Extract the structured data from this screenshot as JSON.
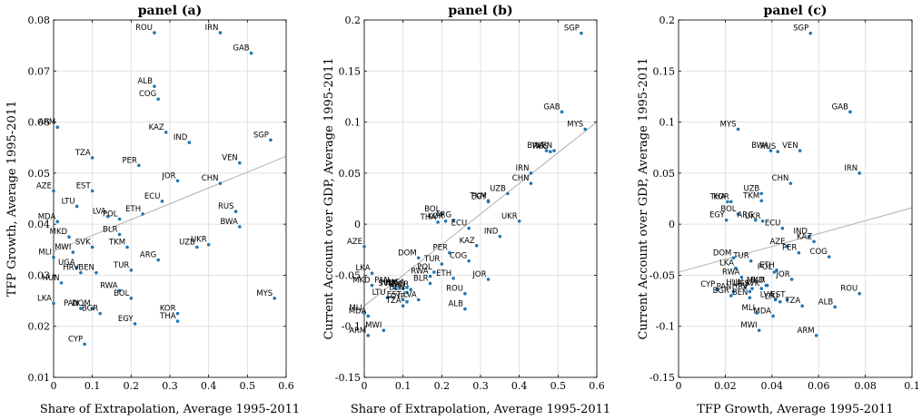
{
  "chart_data": [
    {
      "type": "scatter",
      "title": "panel (a)",
      "xlabel": "Share of Extrapolation, Average 1995-2011",
      "ylabel": "TFP Growth, Average 1995-2011",
      "xlim": [
        0,
        0.6
      ],
      "ylim": [
        0.01,
        0.08
      ],
      "xticks": [
        0,
        0.1,
        0.2,
        0.3,
        0.4,
        0.5,
        0.6
      ],
      "yticks": [
        0.01,
        0.02,
        0.03,
        0.04,
        0.05,
        0.06,
        0.07,
        0.08
      ],
      "xtick_labels": [
        "0",
        "0.1",
        "0.2",
        "0.3",
        "0.4",
        "0.5",
        "0.6"
      ],
      "ytick_labels": [
        "0.01",
        "0.02",
        "0.03",
        "0.04",
        "0.05",
        "0.06",
        "0.07",
        "0.08"
      ],
      "grid": true,
      "fit_line": [
        [
          0,
          0.0347
        ],
        [
          0.6,
          0.0533
        ]
      ],
      "points": [
        {
          "label": "ROU",
          "x": 0.26,
          "y": 0.0775
        },
        {
          "label": "IRN",
          "x": 0.43,
          "y": 0.0775
        },
        {
          "label": "GAB",
          "x": 0.51,
          "y": 0.0735
        },
        {
          "label": "ALB",
          "x": 0.26,
          "y": 0.067
        },
        {
          "label": "COG",
          "x": 0.27,
          "y": 0.0645
        },
        {
          "label": "ARM",
          "x": 0.01,
          "y": 0.059
        },
        {
          "label": "KAZ",
          "x": 0.29,
          "y": 0.058
        },
        {
          "label": "IND",
          "x": 0.35,
          "y": 0.056
        },
        {
          "label": "SGP",
          "x": 0.56,
          "y": 0.0565
        },
        {
          "label": "TZA",
          "x": 0.1,
          "y": 0.053
        },
        {
          "label": "PER",
          "x": 0.22,
          "y": 0.0515
        },
        {
          "label": "VEN",
          "x": 0.48,
          "y": 0.052
        },
        {
          "label": "JOR",
          "x": 0.32,
          "y": 0.0485
        },
        {
          "label": "CHN",
          "x": 0.43,
          "y": 0.048
        },
        {
          "label": "EST",
          "x": 0.1,
          "y": 0.0465
        },
        {
          "label": "AZE",
          "x": 0.0,
          "y": 0.0465
        },
        {
          "label": "ECU",
          "x": 0.28,
          "y": 0.0445
        },
        {
          "label": "LTU",
          "x": 0.06,
          "y": 0.0435
        },
        {
          "label": "RUS",
          "x": 0.47,
          "y": 0.0425
        },
        {
          "label": "ETH",
          "x": 0.23,
          "y": 0.042
        },
        {
          "label": "LVA",
          "x": 0.14,
          "y": 0.0415
        },
        {
          "label": "POL",
          "x": 0.17,
          "y": 0.041
        },
        {
          "label": "MDA",
          "x": 0.01,
          "y": 0.0405
        },
        {
          "label": "BWA",
          "x": 0.48,
          "y": 0.0395
        },
        {
          "label": "BLR",
          "x": 0.17,
          "y": 0.038
        },
        {
          "label": "MKD",
          "x": 0.04,
          "y": 0.0375
        },
        {
          "label": "SVK",
          "x": 0.1,
          "y": 0.0355
        },
        {
          "label": "TKM",
          "x": 0.19,
          "y": 0.0355
        },
        {
          "label": "UKR",
          "x": 0.4,
          "y": 0.036
        },
        {
          "label": "UZB",
          "x": 0.37,
          "y": 0.0355
        },
        {
          "label": "MWI",
          "x": 0.05,
          "y": 0.0345
        },
        {
          "label": "MLI",
          "x": 0.0,
          "y": 0.0335
        },
        {
          "label": "ARG",
          "x": 0.27,
          "y": 0.033
        },
        {
          "label": "UGA",
          "x": 0.06,
          "y": 0.0315
        },
        {
          "label": "HRV",
          "x": 0.07,
          "y": 0.0305
        },
        {
          "label": "BEN",
          "x": 0.11,
          "y": 0.0305
        },
        {
          "label": "TUR",
          "x": 0.2,
          "y": 0.031
        },
        {
          "label": "HUN",
          "x": 0.02,
          "y": 0.0285
        },
        {
          "label": "RWA",
          "x": 0.17,
          "y": 0.027
        },
        {
          "label": "BOL",
          "x": 0.2,
          "y": 0.0255
        },
        {
          "label": "MYS",
          "x": 0.57,
          "y": 0.0255
        },
        {
          "label": "LKA",
          "x": 0.0,
          "y": 0.0245
        },
        {
          "label": "PAN",
          "x": 0.07,
          "y": 0.0235
        },
        {
          "label": "DOM",
          "x": 0.1,
          "y": 0.0235
        },
        {
          "label": "BGR",
          "x": 0.12,
          "y": 0.0225
        },
        {
          "label": "KOR",
          "x": 0.32,
          "y": 0.0225
        },
        {
          "label": "THA",
          "x": 0.32,
          "y": 0.021
        },
        {
          "label": "EGY",
          "x": 0.21,
          "y": 0.0205
        },
        {
          "label": "CYP",
          "x": 0.08,
          "y": 0.0165
        }
      ]
    },
    {
      "type": "scatter",
      "title": "panel (b)",
      "xlabel": "Share of Extrapolation, Average 1995-2011",
      "ylabel": "Current Account over GDP, Average 1995-2011",
      "xlim": [
        0,
        0.6
      ],
      "ylim": [
        -0.15,
        0.2
      ],
      "xticks": [
        0,
        0.1,
        0.2,
        0.3,
        0.4,
        0.5,
        0.6
      ],
      "yticks": [
        -0.15,
        -0.1,
        -0.05,
        0,
        0.05,
        0.1,
        0.15,
        0.2
      ],
      "xtick_labels": [
        "0",
        "0.1",
        "0.2",
        "0.3",
        "0.4",
        "0.5",
        "0.6"
      ],
      "ytick_labels": [
        "-0.15",
        "-0.1",
        "-0.05",
        "0",
        "0.05",
        "0.1",
        "0.15",
        "0.2"
      ],
      "grid": true,
      "fit_line": [
        [
          0,
          -0.08
        ],
        [
          0.6,
          0.1
        ]
      ],
      "points": [
        {
          "label": "SGP",
          "x": 0.56,
          "y": 0.187
        },
        {
          "label": "GAB",
          "x": 0.51,
          "y": 0.11
        },
        {
          "label": "MYS",
          "x": 0.57,
          "y": 0.093
        },
        {
          "label": "BWA",
          "x": 0.47,
          "y": 0.072
        },
        {
          "label": "RUS",
          "x": 0.48,
          "y": 0.071
        },
        {
          "label": "VEN",
          "x": 0.49,
          "y": 0.072
        },
        {
          "label": "IRN",
          "x": 0.43,
          "y": 0.05
        },
        {
          "label": "CHN",
          "x": 0.43,
          "y": 0.04
        },
        {
          "label": "UZB",
          "x": 0.37,
          "y": 0.03
        },
        {
          "label": "TKM",
          "x": 0.32,
          "y": 0.023
        },
        {
          "label": "EGY",
          "x": 0.32,
          "y": 0.022
        },
        {
          "label": "BOL",
          "x": 0.2,
          "y": 0.01
        },
        {
          "label": "ARG",
          "x": 0.23,
          "y": 0.004
        },
        {
          "label": "THA",
          "x": 0.19,
          "y": 0.002
        },
        {
          "label": "KOR",
          "x": 0.21,
          "y": 0.003
        },
        {
          "label": "ECU",
          "x": 0.27,
          "y": -0.004
        },
        {
          "label": "UKR",
          "x": 0.4,
          "y": 0.003
        },
        {
          "label": "IND",
          "x": 0.35,
          "y": -0.012
        },
        {
          "label": "KAZ",
          "x": 0.29,
          "y": -0.021
        },
        {
          "label": "AZE",
          "x": 0.0,
          "y": -0.022
        },
        {
          "label": "PER",
          "x": 0.22,
          "y": -0.028
        },
        {
          "label": "DOM",
          "x": 0.14,
          "y": -0.033
        },
        {
          "label": "COG",
          "x": 0.27,
          "y": -0.036
        },
        {
          "label": "TUR",
          "x": 0.2,
          "y": -0.039
        },
        {
          "label": "POL",
          "x": 0.18,
          "y": -0.047
        },
        {
          "label": "RWA",
          "x": 0.17,
          "y": -0.051
        },
        {
          "label": "LKA",
          "x": 0.02,
          "y": -0.048
        },
        {
          "label": "ETH",
          "x": 0.23,
          "y": -0.053
        },
        {
          "label": "JOR",
          "x": 0.32,
          "y": -0.054
        },
        {
          "label": "BLR",
          "x": 0.17,
          "y": -0.058
        },
        {
          "label": "MKD",
          "x": 0.02,
          "y": -0.06
        },
        {
          "label": "PAN",
          "x": 0.07,
          "y": -0.06
        },
        {
          "label": "UGA",
          "x": 0.11,
          "y": -0.062
        },
        {
          "label": "HUN",
          "x": 0.09,
          "y": -0.062
        },
        {
          "label": "HRV",
          "x": 0.1,
          "y": -0.063
        },
        {
          "label": "BGR",
          "x": 0.12,
          "y": -0.064
        },
        {
          "label": "SVK",
          "x": 0.08,
          "y": -0.063
        },
        {
          "label": "BEN",
          "x": 0.11,
          "y": -0.067
        },
        {
          "label": "LTU",
          "x": 0.06,
          "y": -0.072
        },
        {
          "label": "EST",
          "x": 0.1,
          "y": -0.074
        },
        {
          "label": "CYP",
          "x": 0.11,
          "y": -0.076
        },
        {
          "label": "LVA",
          "x": 0.14,
          "y": -0.074
        },
        {
          "label": "TZA",
          "x": 0.1,
          "y": -0.08
        },
        {
          "label": "ROU",
          "x": 0.26,
          "y": -0.068
        },
        {
          "label": "ALB",
          "x": 0.26,
          "y": -0.083
        },
        {
          "label": "MLI",
          "x": 0.0,
          "y": -0.087
        },
        {
          "label": "MDA",
          "x": 0.01,
          "y": -0.09
        },
        {
          "label": "MWI",
          "x": 0.05,
          "y": -0.104
        },
        {
          "label": "ARM",
          "x": 0.01,
          "y": -0.109
        }
      ]
    },
    {
      "type": "scatter",
      "title": "panel (c)",
      "xlabel": "TFP Growth, Average 1995-2011",
      "ylabel": "Current Account over GDP, Average 1995-2011",
      "xlim": [
        0,
        0.1
      ],
      "ylim": [
        -0.15,
        0.2
      ],
      "xticks": [
        0,
        0.02,
        0.04,
        0.06,
        0.08,
        0.1
      ],
      "yticks": [
        -0.15,
        -0.1,
        -0.05,
        0,
        0.05,
        0.1,
        0.15,
        0.2
      ],
      "xtick_labels": [
        "0",
        "0.02",
        "0.04",
        "0.06",
        "0.08",
        "0.1"
      ],
      "ytick_labels": [
        "-0.15",
        "-0.1",
        "-0.05",
        "0",
        "0.05",
        "0.1",
        "0.15",
        "0.2"
      ],
      "grid": true,
      "fit_line": [
        [
          0,
          -0.047
        ],
        [
          0.1,
          0.016
        ]
      ],
      "points": [
        {
          "label": "SGP",
          "x": 0.0565,
          "y": 0.187
        },
        {
          "label": "GAB",
          "x": 0.0735,
          "y": 0.11
        },
        {
          "label": "MYS",
          "x": 0.0255,
          "y": 0.093
        },
        {
          "label": "BWA",
          "x": 0.0395,
          "y": 0.072
        },
        {
          "label": "RUS",
          "x": 0.0425,
          "y": 0.071
        },
        {
          "label": "VEN",
          "x": 0.052,
          "y": 0.072
        },
        {
          "label": "IRN",
          "x": 0.0775,
          "y": 0.05
        },
        {
          "label": "CHN",
          "x": 0.048,
          "y": 0.04
        },
        {
          "label": "UZB",
          "x": 0.0355,
          "y": 0.03
        },
        {
          "label": "TKM",
          "x": 0.0355,
          "y": 0.023
        },
        {
          "label": "THA",
          "x": 0.021,
          "y": 0.022
        },
        {
          "label": "KOR",
          "x": 0.0225,
          "y": 0.022
        },
        {
          "label": "BOL",
          "x": 0.0255,
          "y": 0.01
        },
        {
          "label": "EGY",
          "x": 0.0205,
          "y": 0.004
        },
        {
          "label": "ARG",
          "x": 0.033,
          "y": 0.004
        },
        {
          "label": "UKR",
          "x": 0.036,
          "y": 0.003
        },
        {
          "label": "ECU",
          "x": 0.0445,
          "y": -0.004
        },
        {
          "label": "IND",
          "x": 0.056,
          "y": -0.012
        },
        {
          "label": "KAZ",
          "x": 0.058,
          "y": -0.017
        },
        {
          "label": "AZE",
          "x": 0.0465,
          "y": -0.022
        },
        {
          "label": "PER",
          "x": 0.0515,
          "y": -0.028
        },
        {
          "label": "COG",
          "x": 0.0645,
          "y": -0.032
        },
        {
          "label": "DOM",
          "x": 0.0235,
          "y": -0.033
        },
        {
          "label": "TUR",
          "x": 0.031,
          "y": -0.036
        },
        {
          "label": "LKA",
          "x": 0.0245,
          "y": -0.043
        },
        {
          "label": "ETH",
          "x": 0.042,
          "y": -0.045
        },
        {
          "label": "POL",
          "x": 0.041,
          "y": -0.047
        },
        {
          "label": "JOR",
          "x": 0.0485,
          "y": -0.054
        },
        {
          "label": "RWA",
          "x": 0.027,
          "y": -0.052
        },
        {
          "label": "HUN",
          "x": 0.0285,
          "y": -0.062
        },
        {
          "label": "MKD",
          "x": 0.0375,
          "y": -0.06
        },
        {
          "label": "SVK",
          "x": 0.0355,
          "y": -0.063
        },
        {
          "label": "BLR",
          "x": 0.038,
          "y": -0.06
        },
        {
          "label": "CYP",
          "x": 0.0165,
          "y": -0.064
        },
        {
          "label": "PAN",
          "x": 0.0235,
          "y": -0.066
        },
        {
          "label": "UGA",
          "x": 0.0315,
          "y": -0.063
        },
        {
          "label": "HRV",
          "x": 0.0305,
          "y": -0.066
        },
        {
          "label": "BEN",
          "x": 0.0305,
          "y": -0.072
        },
        {
          "label": "LVA",
          "x": 0.0415,
          "y": -0.074
        },
        {
          "label": "EST",
          "x": 0.0465,
          "y": -0.074
        },
        {
          "label": "LTU",
          "x": 0.0435,
          "y": -0.076
        },
        {
          "label": "TZA",
          "x": 0.053,
          "y": -0.08
        },
        {
          "label": "BGR",
          "x": 0.0225,
          "y": -0.07
        },
        {
          "label": "MLI",
          "x": 0.0335,
          "y": -0.087
        },
        {
          "label": "MDA",
          "x": 0.0405,
          "y": -0.09
        },
        {
          "label": "ALB",
          "x": 0.067,
          "y": -0.081
        },
        {
          "label": "ROU",
          "x": 0.0775,
          "y": -0.068
        },
        {
          "label": "MWI",
          "x": 0.0345,
          "y": -0.104
        },
        {
          "label": "ARM",
          "x": 0.059,
          "y": -0.109
        }
      ]
    }
  ],
  "colors": {
    "point": "#1f77b4",
    "fit_line": "#b0b0b0",
    "grid": "#e0e0e0",
    "axis": "#000000",
    "text": "#000000"
  }
}
